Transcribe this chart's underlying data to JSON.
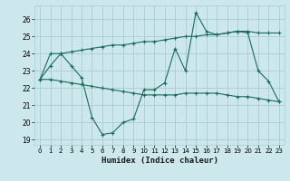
{
  "xlabel": "Humidex (Indice chaleur)",
  "background_color": "#cce8ec",
  "line_color": "#1a6b5a",
  "grid_color": "#aaccd4",
  "xlim": [
    -0.5,
    23.5
  ],
  "ylim": [
    18.7,
    26.8
  ],
  "yticks": [
    19,
    20,
    21,
    22,
    23,
    24,
    25,
    26
  ],
  "xticks": [
    0,
    1,
    2,
    3,
    4,
    5,
    6,
    7,
    8,
    9,
    10,
    11,
    12,
    13,
    14,
    15,
    16,
    17,
    18,
    19,
    20,
    21,
    22,
    23
  ],
  "series1_x": [
    0,
    1,
    2,
    3,
    4,
    5,
    6,
    7,
    8,
    9,
    10,
    11,
    12,
    13,
    14,
    15,
    16,
    17,
    18,
    19,
    20,
    21,
    22,
    23
  ],
  "series1_y": [
    22.5,
    23.3,
    24.0,
    23.3,
    22.6,
    20.3,
    19.3,
    19.4,
    20.0,
    20.2,
    21.9,
    21.9,
    22.3,
    24.3,
    23.0,
    26.4,
    25.3,
    25.1,
    25.2,
    25.3,
    25.2,
    23.0,
    22.4,
    21.2
  ],
  "series2_x": [
    0,
    1,
    2,
    3,
    4,
    5,
    6,
    7,
    8,
    9,
    10,
    11,
    12,
    13,
    14,
    15,
    16,
    17,
    18,
    19,
    20,
    21,
    22,
    23
  ],
  "series2_y": [
    22.5,
    24.0,
    24.0,
    24.1,
    24.2,
    24.3,
    24.4,
    24.5,
    24.5,
    24.6,
    24.7,
    24.7,
    24.8,
    24.9,
    25.0,
    25.0,
    25.1,
    25.1,
    25.2,
    25.3,
    25.3,
    25.2,
    25.2,
    25.2
  ],
  "series3_x": [
    0,
    1,
    2,
    3,
    4,
    5,
    6,
    7,
    8,
    9,
    10,
    11,
    12,
    13,
    14,
    15,
    16,
    17,
    18,
    19,
    20,
    21,
    22,
    23
  ],
  "series3_y": [
    22.5,
    22.5,
    22.4,
    22.3,
    22.2,
    22.1,
    22.0,
    21.9,
    21.8,
    21.7,
    21.6,
    21.6,
    21.6,
    21.6,
    21.7,
    21.7,
    21.7,
    21.7,
    21.6,
    21.5,
    21.5,
    21.4,
    21.3,
    21.2
  ]
}
